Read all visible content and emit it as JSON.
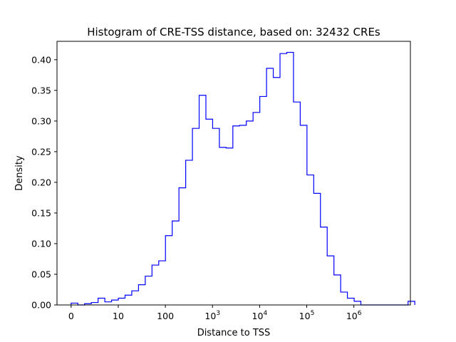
{
  "chart_data": {
    "type": "histogram",
    "title": "Histogram of CRE-TSS distance, based on: 32432 CREs",
    "xlabel": "Distance to TSS",
    "ylabel": "Density",
    "x_scale": "symlog",
    "xlim": [
      -0.3,
      7.2
    ],
    "ylim": [
      0,
      0.43
    ],
    "line_color": "#0000ff",
    "grid": false,
    "x_ticks": [
      {
        "value": 0,
        "base": "0",
        "exp": ""
      },
      {
        "value": 1,
        "base": "10",
        "exp": ""
      },
      {
        "value": 2,
        "base": "100",
        "exp": ""
      },
      {
        "value": 3,
        "base": "10",
        "exp": "3"
      },
      {
        "value": 4,
        "base": "10",
        "exp": "4"
      },
      {
        "value": 5,
        "base": "10",
        "exp": "5"
      },
      {
        "value": 6,
        "base": "10",
        "exp": "6"
      }
    ],
    "y_ticks": [
      "0.00",
      "0.05",
      "0.10",
      "0.15",
      "0.20",
      "0.25",
      "0.30",
      "0.35",
      "0.40"
    ],
    "bin_start": 0,
    "bin_width": 0.143,
    "densities": [
      0.003,
      0.0,
      0.002,
      0.004,
      0.011,
      0.005,
      0.008,
      0.011,
      0.016,
      0.023,
      0.033,
      0.047,
      0.065,
      0.072,
      0.113,
      0.137,
      0.191,
      0.236,
      0.288,
      0.342,
      0.303,
      0.288,
      0.257,
      0.256,
      0.292,
      0.293,
      0.3,
      0.314,
      0.34,
      0.386,
      0.371,
      0.41,
      0.412,
      0.331,
      0.293,
      0.212,
      0.182,
      0.127,
      0.08,
      0.049,
      0.021,
      0.011,
      0.006,
      0.0,
      0.0,
      0.0,
      0.0,
      0.0,
      0.0,
      0.0,
      0.006
    ]
  }
}
